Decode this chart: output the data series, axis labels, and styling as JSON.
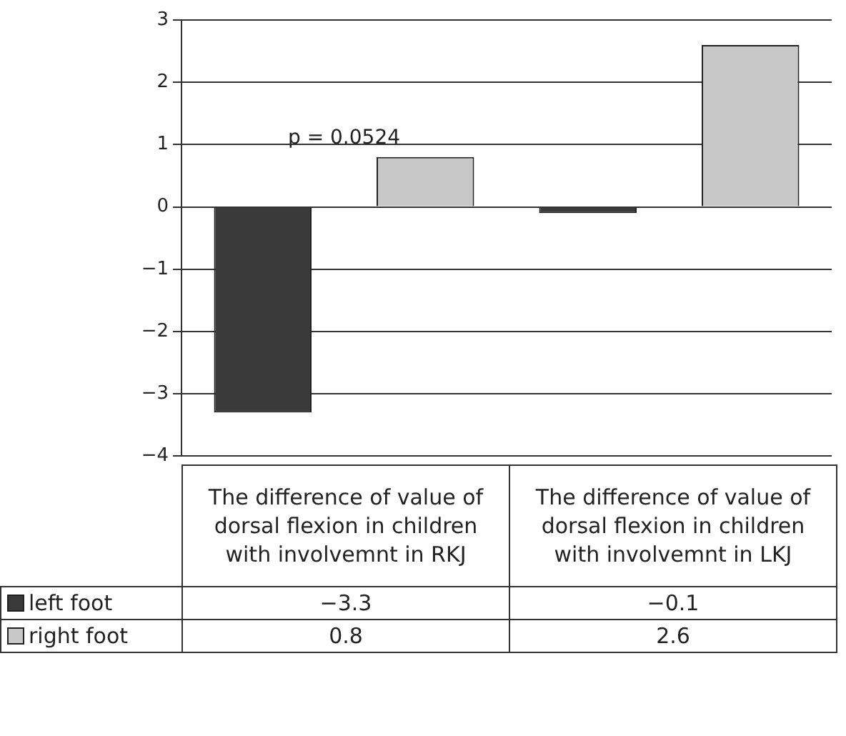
{
  "chart_data": {
    "type": "bar",
    "categories": [
      "The difference of value of dorsal flexion in children with involvemnt in RKJ",
      "The difference of value of dorsal flexion in children with involvemnt in LKJ"
    ],
    "series": [
      {
        "name": "left foot",
        "color": "#3a3a3a",
        "values": [
          -3.3,
          -0.1
        ],
        "value_labels": [
          "−3.3",
          "−0.1"
        ]
      },
      {
        "name": "right foot",
        "color": "#c8c8c8",
        "values": [
          0.8,
          2.6
        ],
        "value_labels": [
          "0.8",
          "2.6"
        ]
      }
    ],
    "ylim": [
      -4,
      3
    ],
    "yticks": [
      {
        "value": -4,
        "label": "−4"
      },
      {
        "value": -3,
        "label": "−3"
      },
      {
        "value": -2,
        "label": "−2"
      },
      {
        "value": -1,
        "label": "−1"
      },
      0,
      1,
      2,
      3
    ],
    "grid": "y",
    "legend": "bottom left",
    "annotations": [
      "p = 0.0524"
    ]
  }
}
